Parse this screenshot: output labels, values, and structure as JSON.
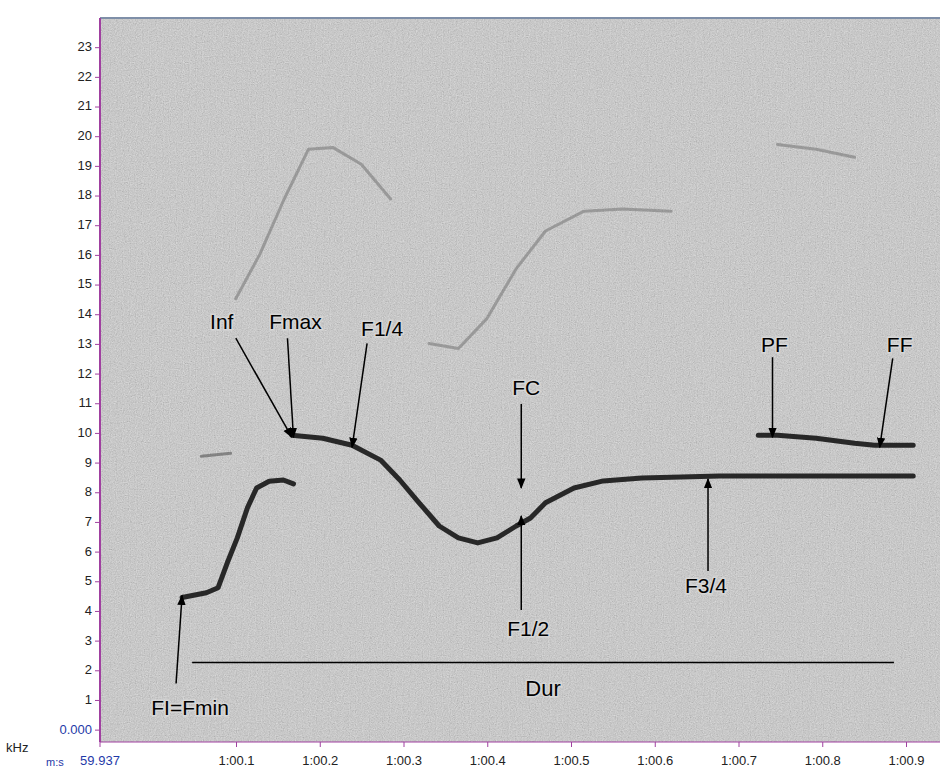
{
  "chart_data": {
    "type": "spectrogram",
    "x_label": "m:s",
    "y_label": "kHz",
    "xlim": [
      59.937,
      60.94
    ],
    "ylim": [
      -0.4,
      24
    ],
    "xticks": [
      59.937,
      {
        "value": 60.1,
        "label": "1:00.1"
      },
      {
        "value": 60.2,
        "label": "1:00.2"
      },
      {
        "value": 60.3,
        "label": "1:00.3"
      },
      {
        "value": 60.4,
        "label": "1:00.4"
      },
      {
        "value": 60.5,
        "label": "1:00.5"
      },
      {
        "value": 60.6,
        "label": "1:00.6"
      },
      {
        "value": 60.7,
        "label": "1:00.7"
      },
      {
        "value": 60.8,
        "label": "1:00.8"
      },
      {
        "value": 60.9,
        "label": "1:00.9"
      }
    ],
    "yticks": [
      {
        "value": 0,
        "label": "0.000"
      },
      1,
      2,
      3,
      4,
      5,
      6,
      7,
      8,
      9,
      10,
      11,
      12,
      13,
      14,
      15,
      16,
      17,
      18,
      19,
      20,
      21,
      22,
      23
    ],
    "series": [
      {
        "color": "#1a1a1a",
        "x": [
          60.035,
          60.064,
          60.078,
          60.089,
          60.101,
          60.113,
          60.124,
          60.139,
          60.156,
          60.168
        ],
        "values": [
          4.47,
          4.63,
          4.8,
          5.64,
          6.48,
          7.49,
          8.16,
          8.39,
          8.43,
          8.3
        ]
      },
      {
        "color": "#1a1a1a",
        "x": [
          60.166,
          60.203,
          60.238,
          60.272,
          60.295,
          60.318,
          60.342,
          60.365,
          60.388,
          60.411,
          60.434,
          60.451,
          60.469,
          60.503,
          60.538,
          60.584,
          60.631,
          60.677,
          60.723,
          60.769,
          60.816,
          60.862,
          60.908
        ],
        "values": [
          9.94,
          9.84,
          9.6,
          9.1,
          8.43,
          7.66,
          6.88,
          6.48,
          6.31,
          6.48,
          6.88,
          7.15,
          7.66,
          8.16,
          8.4,
          8.5,
          8.53,
          8.56,
          8.56,
          8.56,
          8.56,
          8.56,
          8.56
        ]
      },
      {
        "color": "#1a1a1a",
        "x": [
          60.723,
          60.746,
          60.792,
          60.838,
          60.862,
          60.908
        ],
        "values": [
          9.94,
          9.94,
          9.84,
          9.67,
          9.6,
          9.6
        ]
      },
      {
        "color": "#555555",
        "x": [
          60.058,
          60.093
        ],
        "values": [
          9.23,
          9.33
        ]
      },
      {
        "color": "#7a7a7a",
        "x": [
          60.099,
          60.128,
          60.157,
          60.186,
          60.215,
          60.249,
          60.284
        ],
        "values": [
          14.54,
          16.05,
          17.9,
          19.58,
          19.64,
          19.07,
          17.9
        ]
      },
      {
        "color": "#7a7a7a",
        "x": [
          60.33,
          60.365,
          60.399,
          60.434,
          60.469,
          60.515,
          60.561,
          60.619
        ],
        "values": [
          13.03,
          12.86,
          13.87,
          15.55,
          16.82,
          17.49,
          17.56,
          17.49
        ]
      },
      {
        "color": "#7a7a7a",
        "x": [
          60.746,
          60.792,
          60.838
        ],
        "values": [
          19.74,
          19.58,
          19.31
        ]
      }
    ],
    "annotations": [
      {
        "text": "FI=Fmin",
        "x": 60.035,
        "y": 4.47
      },
      {
        "text": "Inf",
        "x": 60.166,
        "y": 9.94
      },
      {
        "text": "Fmax",
        "x": 60.168,
        "y": 9.94
      },
      {
        "text": "F1/4",
        "x": 60.238,
        "y": 9.6
      },
      {
        "text": "FC",
        "x": 60.44,
        "y": 8.23
      },
      {
        "text": "F1/2",
        "x": 60.44,
        "y": 7.15
      },
      {
        "text": "F3/4",
        "x": 60.663,
        "y": 8.4
      },
      {
        "text": "PF",
        "x": 60.74,
        "y": 9.94
      },
      {
        "text": "FF",
        "x": 60.868,
        "y": 9.6
      },
      {
        "text": "Dur",
        "x": [
          60.047,
          60.885
        ],
        "y": 2.28
      }
    ]
  }
}
